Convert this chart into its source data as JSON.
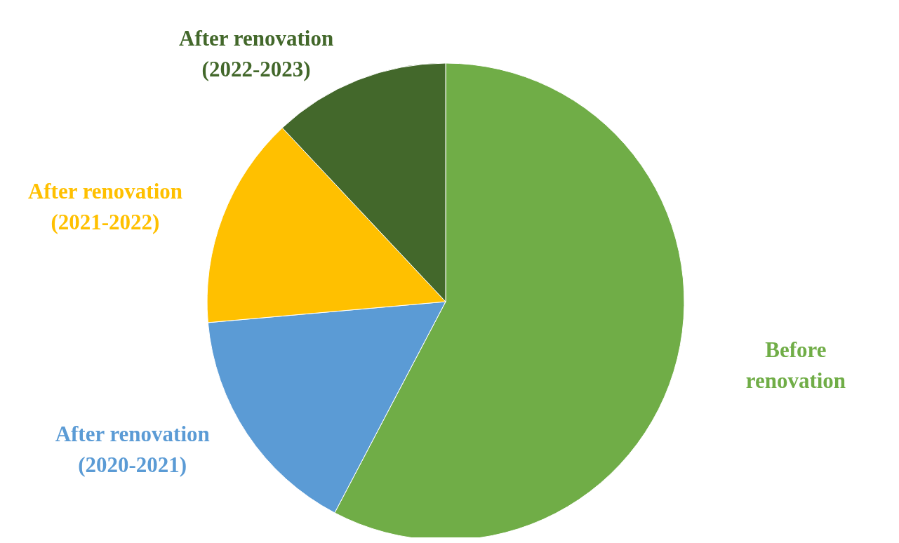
{
  "chart_data": {
    "type": "pie",
    "categories": [
      "Before renovation",
      "After renovation (2020-2021)",
      "After renovation (2021-2022)",
      "After renovation (2022-2023)"
    ],
    "values": [
      57.7,
      15.9,
      14.4,
      12.0
    ],
    "colors": [
      "#70ad47",
      "#5b9bd5",
      "#ffc000",
      "#43682b"
    ],
    "legend": false
  }
}
